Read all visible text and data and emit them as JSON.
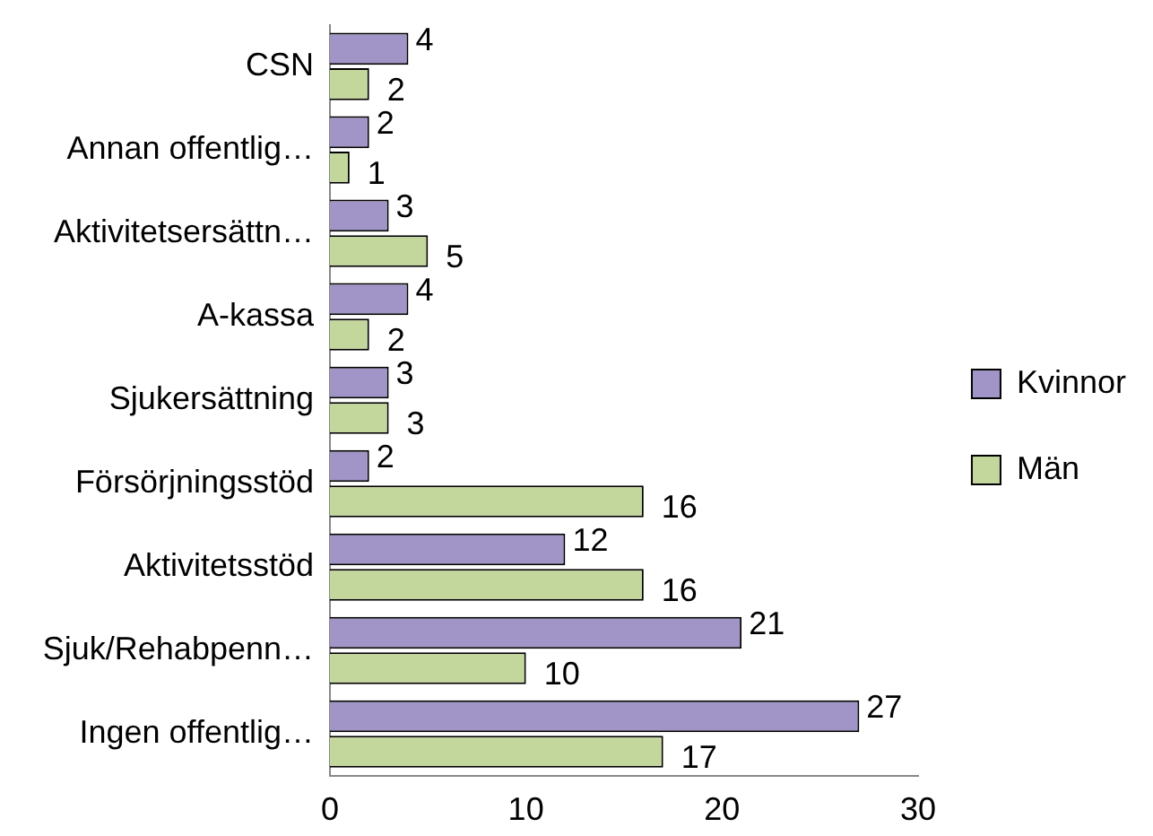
{
  "chart_data": {
    "type": "bar",
    "orientation": "horizontal",
    "categories": [
      "CSN",
      "Annan offentlig…",
      "Aktivitetsersättn…",
      "A-kassa",
      "Sjukersättning",
      "Försörjningsstöd",
      "Aktivitetsstöd",
      "Sjuk/Rehabpenn…",
      "Ingen offentlig…"
    ],
    "series": [
      {
        "name": "Kvinnor",
        "color": "#a195c8",
        "values": [
          4,
          2,
          3,
          4,
          3,
          2,
          12,
          21,
          27
        ]
      },
      {
        "name": "Män",
        "color": "#c3d69b",
        "values": [
          2,
          1,
          5,
          2,
          3,
          16,
          16,
          10,
          17
        ]
      }
    ],
    "xlim": [
      0,
      30
    ],
    "xticks": [
      0,
      10,
      20,
      30
    ],
    "grid": false,
    "legend": "right",
    "data_labels": true
  }
}
